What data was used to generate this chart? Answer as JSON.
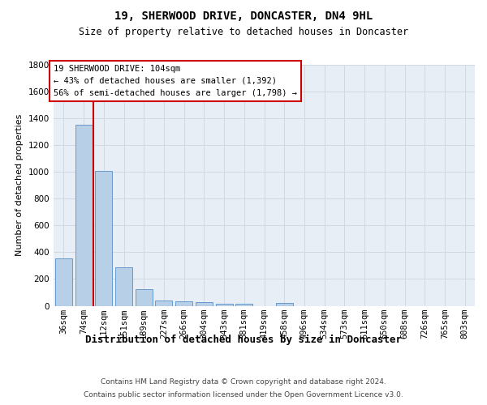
{
  "title": "19, SHERWOOD DRIVE, DONCASTER, DN4 9HL",
  "subtitle": "Size of property relative to detached houses in Doncaster",
  "xlabel": "Distribution of detached houses by size in Doncaster",
  "ylabel": "Number of detached properties",
  "footnote1": "Contains HM Land Registry data © Crown copyright and database right 2024.",
  "footnote2": "Contains public sector information licensed under the Open Government Licence v3.0.",
  "bin_labels": [
    "36sqm",
    "74sqm",
    "112sqm",
    "151sqm",
    "189sqm",
    "227sqm",
    "266sqm",
    "304sqm",
    "343sqm",
    "381sqm",
    "419sqm",
    "458sqm",
    "496sqm",
    "534sqm",
    "573sqm",
    "611sqm",
    "650sqm",
    "688sqm",
    "726sqm",
    "765sqm",
    "803sqm"
  ],
  "bar_heights": [
    355,
    1350,
    1005,
    290,
    125,
    40,
    33,
    25,
    18,
    15,
    0,
    20,
    0,
    0,
    0,
    0,
    0,
    0,
    0,
    0,
    0
  ],
  "bar_color": "#b8cfe8",
  "bar_edge_color": "#6699cc",
  "vline_color": "#cc0000",
  "vline_x": 1.5,
  "annotation_line1": "19 SHERWOOD DRIVE: 104sqm",
  "annotation_line2": "← 43% of detached houses are smaller (1,392)",
  "annotation_line3": "56% of semi-detached houses are larger (1,798) →",
  "ylim_max": 1800,
  "yticks": [
    0,
    200,
    400,
    600,
    800,
    1000,
    1200,
    1400,
    1600,
    1800
  ],
  "grid_color": "#d0d8e4",
  "bg_color": "#e8eef5",
  "title_fontsize": 10,
  "subtitle_fontsize": 8.5,
  "ylabel_fontsize": 8,
  "xlabel_fontsize": 9,
  "tick_fontsize": 7.5,
  "footnote_fontsize": 6.5
}
